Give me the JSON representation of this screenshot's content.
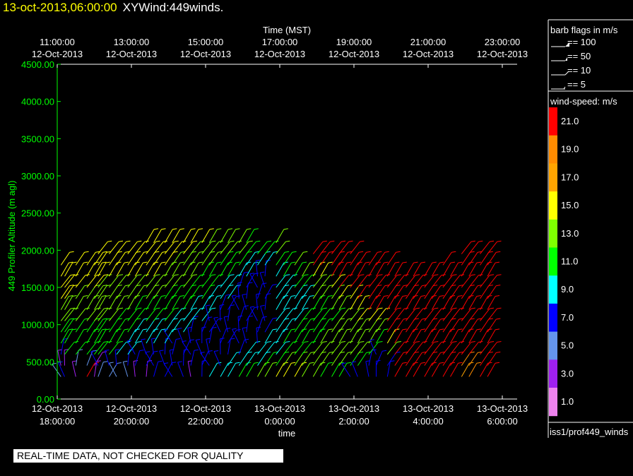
{
  "header": {
    "date": "13-oct-2013,06:00:00",
    "name": "XYWind:449winds."
  },
  "warning": "REAL-TIME DATA, NOT CHECKED FOR QUALITY",
  "colors": {
    "title_date": "#ffff00",
    "axis": "#ffffff",
    "ylabel": "#00ff00",
    "scale": [
      "#ee82ee",
      "#a020f0",
      "#6495ed",
      "#0000ff",
      "#00ffff",
      "#00ff00",
      "#7fff00",
      "#ffff00",
      "#ffa500",
      "#ff8c00",
      "#ff0000"
    ]
  },
  "legend": {
    "barb_title": "barb flags in m/s",
    "barb_items": [
      "== 100",
      "== 50",
      "== 10",
      "== 5"
    ],
    "speed_title": "wind-speed: m/s",
    "speed_labels": [
      "21.0",
      "19.0",
      "17.0",
      "15.0",
      "13.0",
      "11.0",
      "9.0",
      "7.0",
      "5.0",
      "3.0",
      "1.0"
    ],
    "footer": "iss1/prof449_winds"
  },
  "chart_data": {
    "type": "scatter",
    "xlabel": "time",
    "top_xlabel": "Time (MST)",
    "ylabel": "449 Profiler Altitude (m agl)",
    "ylim": [
      0,
      4500
    ],
    "y_ticks": [
      "0.00",
      "500.00",
      "1000.00",
      "1500.00",
      "2000.00",
      "2500.00",
      "3000.00",
      "3500.00",
      "4000.00",
      "4500.00"
    ],
    "x_ticks": [
      {
        "line1": "12-Oct-2013",
        "line2": "18:00:00"
      },
      {
        "line1": "12-Oct-2013",
        "line2": "20:00:00"
      },
      {
        "line1": "12-Oct-2013",
        "line2": "22:00:00"
      },
      {
        "line1": "13-Oct-2013",
        "line2": "0:00:00"
      },
      {
        "line1": "13-Oct-2013",
        "line2": "2:00:00"
      },
      {
        "line1": "13-Oct-2013",
        "line2": "4:00:00"
      },
      {
        "line1": "13-Oct-2013",
        "line2": "6:00:00"
      }
    ],
    "top_x_ticks": [
      {
        "line1": "11:00:00",
        "line2": "12-Oct-2013"
      },
      {
        "line1": "13:00:00",
        "line2": "12-Oct-2013"
      },
      {
        "line1": "15:00:00",
        "line2": "12-Oct-2013"
      },
      {
        "line1": "17:00:00",
        "line2": "12-Oct-2013"
      },
      {
        "line1": "19:00:00",
        "line2": "12-Oct-2013"
      },
      {
        "line1": "21:00:00",
        "line2": "12-Oct-2013"
      },
      {
        "line1": "23:00:00",
        "line2": "12-Oct-2013"
      }
    ],
    "x_hours": [
      0.1,
      0.2,
      0.5,
      0.8,
      1.0,
      1.1,
      1.4,
      1.6,
      1.9,
      2.1,
      2.4,
      2.6,
      2.9,
      3.1,
      3.4,
      3.6,
      3.9,
      4.1,
      4.4,
      4.6,
      4.9,
      5.1,
      5.4,
      5.6,
      5.9,
      6.1,
      6.4,
      6.6,
      6.9,
      7.1,
      7.4,
      7.6,
      7.9,
      8.1,
      8.4,
      8.6,
      8.9,
      9.1,
      9.4,
      9.6,
      9.9,
      10.1,
      10.4,
      10.6,
      10.9,
      11.1,
      11.4,
      11.6
    ],
    "levels_m": [
      300,
      450,
      600,
      750,
      900,
      1050,
      1200,
      1350,
      1500,
      1650,
      1800,
      1950,
      2100,
      2250
    ],
    "wind_speed_ms": [
      [
        4,
        3,
        7,
        10,
        11,
        13,
        13,
        15,
        15,
        15,
        15
      ],
      [
        6,
        3,
        10,
        11,
        11,
        13,
        13,
        15,
        15,
        15
      ],
      [
        3,
        5,
        10,
        11,
        11,
        13,
        13,
        13,
        15,
        15,
        15
      ],
      [
        21,
        5,
        10,
        11,
        11,
        13,
        13,
        13,
        15,
        15,
        15
      ],
      [
        3,
        3,
        10,
        11,
        11,
        13,
        13,
        13,
        15,
        15,
        15
      ],
      [
        5,
        7,
        10,
        11,
        11,
        13,
        13,
        13,
        13,
        15,
        15,
        15
      ],
      [
        5,
        7,
        10,
        11,
        11,
        13,
        13,
        13,
        13,
        15,
        15,
        15
      ],
      [
        5,
        7,
        9,
        11,
        11,
        11,
        13,
        13,
        13,
        15,
        15,
        15
      ],
      [
        5,
        7,
        9,
        9,
        11,
        11,
        13,
        13,
        13,
        15,
        15,
        15
      ],
      [
        3,
        7,
        7,
        9,
        9,
        11,
        11,
        13,
        13,
        15,
        15,
        15
      ],
      [
        3,
        7,
        7,
        9,
        9,
        11,
        11,
        13,
        13,
        15,
        15,
        15,
        15
      ],
      [
        7,
        7,
        7,
        9,
        9,
        11,
        11,
        13,
        13,
        15,
        15,
        15,
        15
      ],
      [
        7,
        7,
        7,
        9,
        9,
        11,
        11,
        11,
        13,
        13,
        15,
        15,
        15
      ],
      [
        7,
        7,
        7,
        7,
        9,
        9,
        11,
        11,
        13,
        13,
        13,
        15,
        15
      ],
      [
        7,
        7,
        7,
        7,
        9,
        9,
        11,
        11,
        13,
        13,
        13,
        15,
        15
      ],
      [
        3,
        7,
        7,
        7,
        7,
        9,
        9,
        11,
        11,
        13,
        13,
        13,
        15
      ],
      [
        7,
        7,
        7,
        7,
        7,
        9,
        9,
        11,
        11,
        11,
        13,
        13,
        15
      ],
      [
        9,
        7,
        7,
        7,
        7,
        7,
        9,
        9,
        11,
        11,
        13,
        13,
        13
      ],
      [
        9,
        7,
        7,
        7,
        7,
        7,
        7,
        9,
        9,
        11,
        11,
        13,
        13
      ],
      [
        9,
        9,
        7,
        7,
        7,
        7,
        7,
        9,
        9,
        11,
        11,
        13,
        13
      ],
      [
        11,
        9,
        7,
        7,
        7,
        7,
        7,
        7,
        7,
        9,
        11,
        13,
        13
      ],
      [
        11,
        9,
        9,
        7,
        7,
        7,
        7,
        7,
        7,
        9,
        9,
        11,
        11
      ],
      [
        13,
        9,
        9,
        7,
        7,
        7,
        7,
        7,
        7,
        7,
        9,
        11
      ],
      [
        13,
        11,
        9,
        9,
        7,
        7,
        7,
        7,
        7,
        7,
        9,
        11
      ],
      [
        15,
        11,
        9,
        9,
        9,
        9,
        9,
        9,
        9,
        9,
        11,
        13,
        13
      ],
      [
        15,
        13,
        11,
        11,
        9,
        9,
        9,
        9,
        9,
        11,
        11
      ],
      [
        15,
        13,
        11,
        11,
        11,
        9,
        9,
        9,
        11,
        11,
        13
      ],
      [
        13,
        13,
        11,
        11,
        11,
        11,
        9,
        9,
        11,
        13
      ],
      [
        13,
        13,
        13,
        11,
        11,
        11,
        11,
        13,
        13,
        15,
        21,
        21
      ],
      [
        11,
        13,
        13,
        13,
        11,
        11,
        11,
        13,
        13,
        15,
        21,
        21
      ],
      [
        11,
        13,
        13,
        13,
        13,
        11,
        13,
        13,
        15,
        21,
        21,
        21
      ],
      [
        11,
        13,
        13,
        13,
        13,
        13,
        13,
        15,
        21,
        21,
        21,
        21
      ],
      [
        7,
        11,
        13,
        13,
        13,
        13,
        15,
        15,
        21,
        21,
        21,
        21
      ],
      [
        7,
        11,
        13,
        13,
        13,
        15,
        15,
        21,
        21,
        21,
        21
      ],
      [
        7,
        7,
        11,
        13,
        13,
        15,
        21,
        21,
        21,
        21,
        21
      ],
      [
        7,
        7,
        7,
        11,
        13,
        15,
        21,
        21,
        21,
        21,
        21
      ],
      [
        7,
        7,
        13,
        15,
        21,
        21,
        21,
        21,
        21,
        21,
        21
      ],
      [
        21,
        21,
        21,
        21,
        21,
        21,
        21,
        21,
        21,
        21
      ],
      [
        21,
        21,
        21,
        21,
        21,
        21,
        21,
        21,
        21,
        21
      ],
      [
        21,
        21,
        21,
        21,
        21,
        21,
        21,
        21,
        21,
        21
      ],
      [
        21,
        21,
        21,
        21,
        21,
        21,
        21,
        21,
        21,
        21
      ],
      [
        21,
        21,
        21,
        21,
        21,
        21,
        21,
        21,
        21,
        21
      ],
      [
        21,
        21,
        21,
        21,
        21,
        21,
        21,
        21,
        21,
        21,
        21
      ],
      [
        21,
        21,
        21,
        21,
        21,
        21,
        21,
        21,
        21,
        21
      ],
      [
        17,
        19,
        21,
        21,
        21,
        21,
        21,
        21,
        21,
        21,
        21,
        21
      ],
      [
        19,
        19,
        21,
        21,
        21,
        21,
        21,
        21,
        21,
        21,
        21,
        21
      ],
      [
        21,
        21,
        21,
        21,
        21,
        21,
        21,
        21,
        21,
        21,
        21,
        21
      ],
      [
        21,
        21,
        21,
        21,
        21,
        21,
        21,
        21,
        21,
        21,
        21,
        21
      ]
    ]
  }
}
